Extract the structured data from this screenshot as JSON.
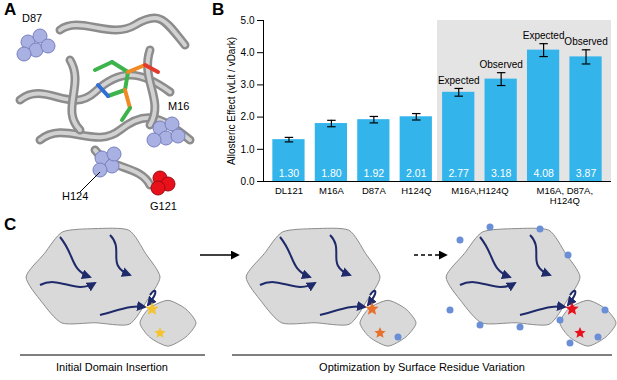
{
  "chart_data": {
    "type": "bar",
    "y_label": "Allosteric Effect (vLit / vDark)",
    "categories": [
      "DL121",
      "M16A",
      "D87A",
      "H124Q",
      "M16A,H124Q",
      null,
      "M16A, D87A, H124Q",
      null
    ],
    "values": [
      1.3,
      1.8,
      1.92,
      2.01,
      2.77,
      3.18,
      4.08,
      3.87
    ],
    "value_labels": [
      "1.30",
      "1.80",
      "1.92",
      "2.01",
      "2.77",
      "3.18",
      "4.08",
      "3.87"
    ],
    "errors": [
      0.07,
      0.1,
      0.1,
      0.1,
      0.12,
      0.2,
      0.2,
      0.22
    ],
    "bar_notes": [
      null,
      null,
      null,
      null,
      "Expected",
      "Observed",
      "Expected",
      "Observed"
    ],
    "color": "#33b5ec",
    "ylim": [
      0,
      5
    ],
    "yticks": [
      0,
      1,
      2,
      3,
      4,
      5
    ],
    "data_labels": true
  },
  "panels": {
    "A": {
      "letter": "A",
      "residue_labels": [
        "D87",
        "M16",
        "H124",
        "G121"
      ]
    },
    "B": {
      "letter": "B"
    },
    "C": {
      "letter": "C",
      "captions": [
        "Initial Domain Insertion",
        "Optimization by Surface Residue Variation"
      ]
    }
  }
}
